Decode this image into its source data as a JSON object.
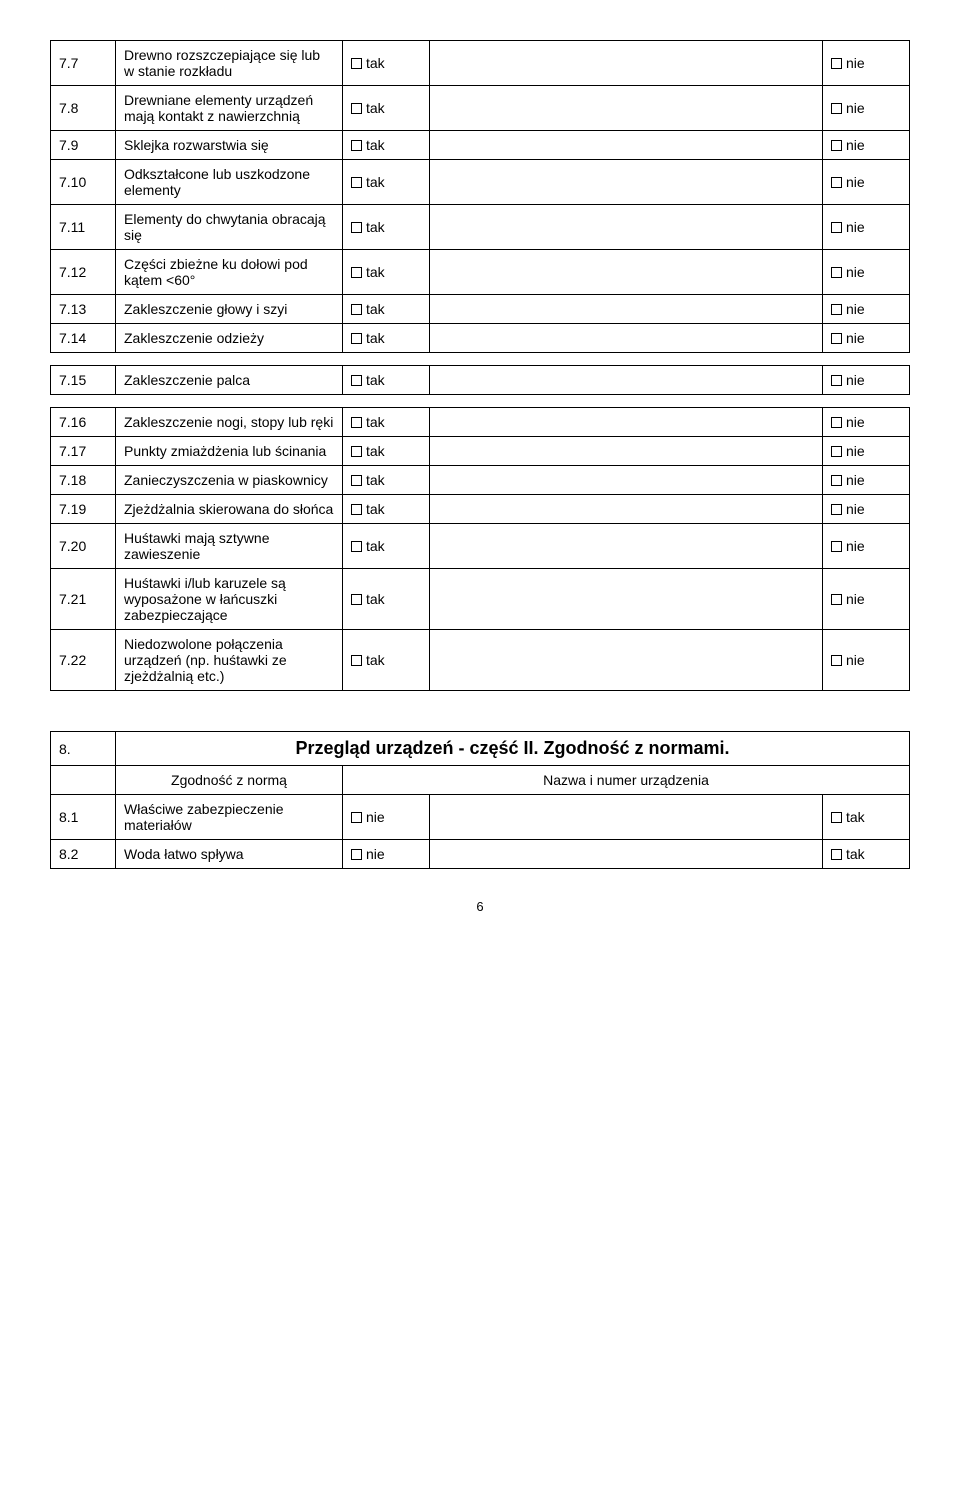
{
  "labels": {
    "tak": "tak",
    "nie": "nie"
  },
  "table7a": {
    "rows": [
      {
        "num": "7.7",
        "desc": "Drewno rozszczepiające się lub w stanie rozkładu"
      },
      {
        "num": "7.8",
        "desc": "Drewniane elementy urządzeń mają kontakt z nawierzchnią"
      },
      {
        "num": "7.9",
        "desc": "Sklejka rozwarstwia się"
      },
      {
        "num": "7.10",
        "desc": "Odkształcone lub uszkodzone elementy"
      },
      {
        "num": "7.11",
        "desc": "Elementy do chwytania obracają się"
      },
      {
        "num": "7.12",
        "desc": "Części zbieżne ku dołowi pod kątem <60°"
      },
      {
        "num": "7.13",
        "desc": "Zakleszczenie głowy i szyi"
      },
      {
        "num": "7.14",
        "desc": "Zakleszczenie odzieży"
      }
    ]
  },
  "table7b": {
    "rows": [
      {
        "num": "7.15",
        "desc": "Zakleszczenie palca"
      }
    ]
  },
  "table7c": {
    "rows": [
      {
        "num": "7.16",
        "desc": "Zakleszczenie nogi, stopy lub ręki"
      },
      {
        "num": "7.17",
        "desc": "Punkty zmiażdżenia lub ścinania"
      },
      {
        "num": "7.18",
        "desc": "Zanieczyszczenia w piaskownicy"
      },
      {
        "num": "7.19",
        "desc": "Zjeżdżalnia skierowana do słońca"
      },
      {
        "num": "7.20",
        "desc": "Huśtawki mają sztywne zawieszenie"
      },
      {
        "num": "7.21",
        "desc": "Huśtawki i/lub karuzele są wyposażone w łańcuszki zabezpieczające"
      },
      {
        "num": "7.22",
        "desc": "Niedozwolone połączenia urządzeń (np. huśtawki ze zjeżdżalnią etc.)"
      }
    ]
  },
  "section8": {
    "num": "8.",
    "title": "Przegląd urządzeń - część II. Zgodność z normami.",
    "sub_left": "Zgodność z normą",
    "sub_right": "Nazwa i numer urządzenia",
    "rows": [
      {
        "num": "8.1",
        "desc": "Właściwe zabezpieczenie materiałów"
      },
      {
        "num": "8.2",
        "desc": "Woda łatwo spływa"
      }
    ]
  },
  "page_number": "6"
}
